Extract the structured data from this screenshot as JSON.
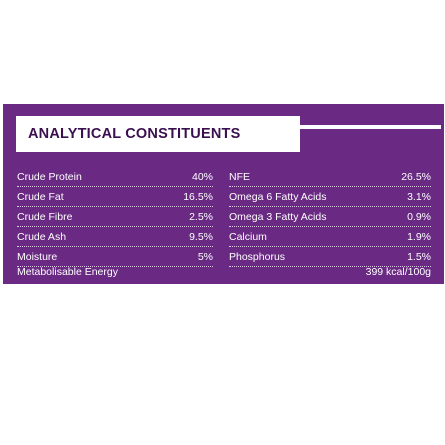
{
  "title": "ANALYTICAL CONSTITUENTS",
  "colors": {
    "panel_bg": "#6a2a83",
    "title_text": "#3b0f4f",
    "text": "#ffffff"
  },
  "left_rows": [
    {
      "label": "Crude Protein",
      "value": "40%"
    },
    {
      "label": "Crude Fat",
      "value": "16.5%"
    },
    {
      "label": "Crude Fibre",
      "value": "2.5%"
    },
    {
      "label": "Crude Ash",
      "value": "9.5%"
    },
    {
      "label": "Moisture",
      "value": "5%"
    }
  ],
  "right_rows": [
    {
      "label": "NFE",
      "value": "26.5%"
    },
    {
      "label": "Omega 6 Fatty Acids",
      "value": "3.1%"
    },
    {
      "label": "Omega 3 Fatty Acids",
      "value": "0.9%"
    },
    {
      "label": "Calcium",
      "value": "1.9%"
    },
    {
      "label": "Phosphorus",
      "value": "1.5%"
    }
  ],
  "energy": {
    "label": "Metabolisable Energy",
    "value": "399 kcal/100g"
  }
}
